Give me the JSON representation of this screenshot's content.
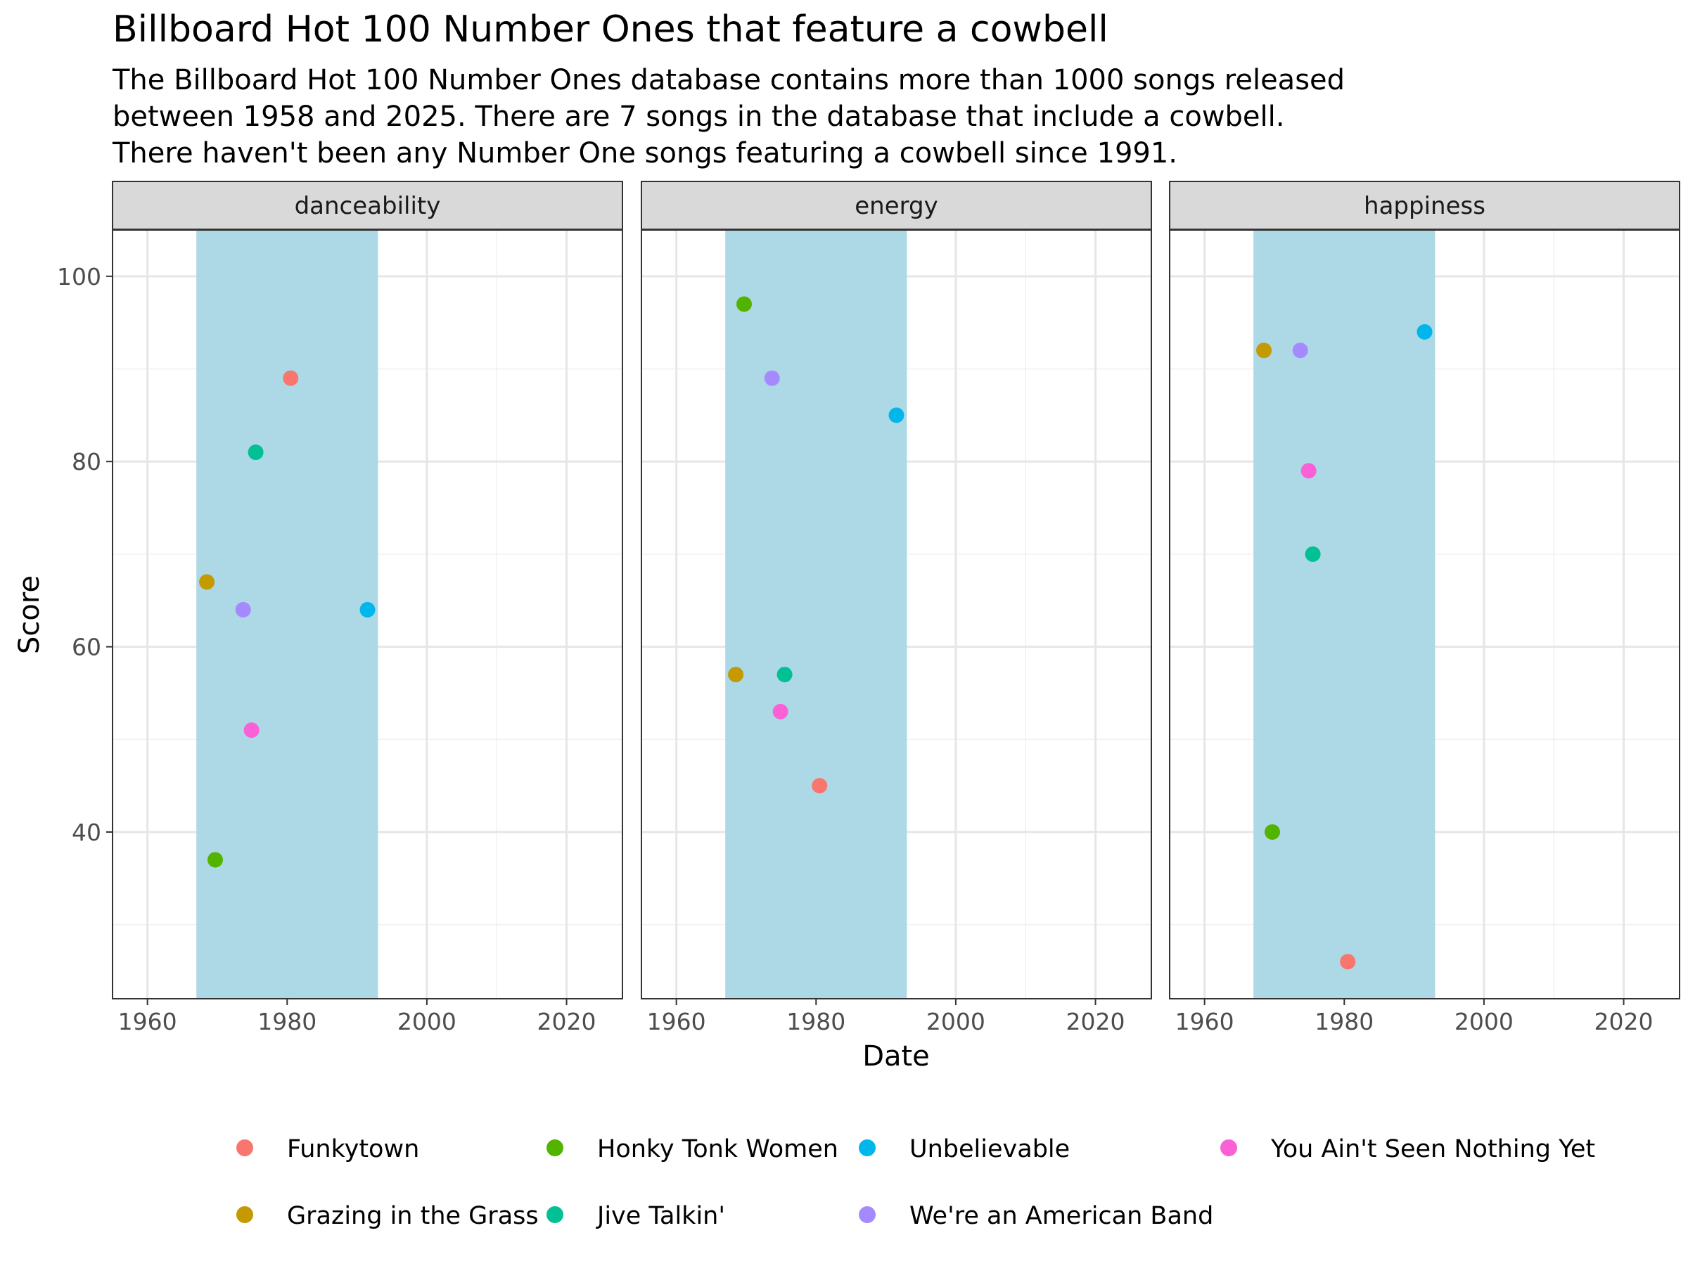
{
  "chart_data": {
    "type": "scatter",
    "title": "Billboard Hot 100 Number Ones that feature a cowbell",
    "subtitle": [
      "The Billboard Hot 100 Number Ones database contains more than 1000 songs released",
      "between 1958 and 2025. There are 7 songs in the database that include a cowbell.",
      "There haven't been any Number One songs featuring a cowbell since 1991."
    ],
    "xlabel": "Date",
    "ylabel": "Score",
    "xlim": [
      1955,
      2028
    ],
    "ylim": [
      22,
      105
    ],
    "x_ticks": [
      1960,
      1980,
      2000,
      2020
    ],
    "x_tick_labels": [
      "1960",
      "1980",
      "2000",
      "2020"
    ],
    "y_ticks": [
      40,
      60,
      80,
      100
    ],
    "y_tick_labels": [
      "40",
      "60",
      "80",
      "100"
    ],
    "grid": true,
    "highlight_band": {
      "x_start": 1967,
      "x_end": 1993,
      "color": "#ADD8E6"
    },
    "legend_position": "bottom",
    "panels": [
      {
        "name": "danceability",
        "points": [
          {
            "song": "Funkytown",
            "x": 1980.5,
            "y": 89
          },
          {
            "song": "Honky Tonk Women",
            "x": 1969.7,
            "y": 37
          },
          {
            "song": "Unbelievable",
            "x": 1991.5,
            "y": 64
          },
          {
            "song": "You Ain't Seen Nothing Yet",
            "x": 1974.9,
            "y": 51
          },
          {
            "song": "Grazing in the Grass",
            "x": 1968.5,
            "y": 67
          },
          {
            "song": "Jive Talkin'",
            "x": 1975.5,
            "y": 81
          },
          {
            "song": "We're an American Band",
            "x": 1973.7,
            "y": 64
          }
        ]
      },
      {
        "name": "energy",
        "points": [
          {
            "song": "Funkytown",
            "x": 1980.5,
            "y": 45
          },
          {
            "song": "Honky Tonk Women",
            "x": 1969.7,
            "y": 97
          },
          {
            "song": "Unbelievable",
            "x": 1991.5,
            "y": 85
          },
          {
            "song": "You Ain't Seen Nothing Yet",
            "x": 1974.9,
            "y": 53
          },
          {
            "song": "Grazing in the Grass",
            "x": 1968.5,
            "y": 57
          },
          {
            "song": "Jive Talkin'",
            "x": 1975.5,
            "y": 57
          },
          {
            "song": "We're an American Band",
            "x": 1973.7,
            "y": 89
          }
        ]
      },
      {
        "name": "happiness",
        "points": [
          {
            "song": "Funkytown",
            "x": 1980.5,
            "y": 26
          },
          {
            "song": "Honky Tonk Women",
            "x": 1969.7,
            "y": 40
          },
          {
            "song": "Unbelievable",
            "x": 1991.5,
            "y": 94
          },
          {
            "song": "You Ain't Seen Nothing Yet",
            "x": 1974.9,
            "y": 79
          },
          {
            "song": "Grazing in the Grass",
            "x": 1968.5,
            "y": 92
          },
          {
            "song": "Jive Talkin'",
            "x": 1975.5,
            "y": 70
          },
          {
            "song": "We're an American Band",
            "x": 1973.7,
            "y": 92
          }
        ]
      }
    ],
    "series": [
      {
        "name": "Funkytown",
        "color": "#F8766D"
      },
      {
        "name": "Grazing in the Grass",
        "color": "#C49A00"
      },
      {
        "name": "Honky Tonk Women",
        "color": "#53B400"
      },
      {
        "name": "Jive Talkin'",
        "color": "#00C094"
      },
      {
        "name": "Unbelievable",
        "color": "#00B6EB"
      },
      {
        "name": "We're an American Band",
        "color": "#A58AFF"
      },
      {
        "name": "You Ain't Seen Nothing Yet",
        "color": "#FB61D7"
      }
    ]
  }
}
